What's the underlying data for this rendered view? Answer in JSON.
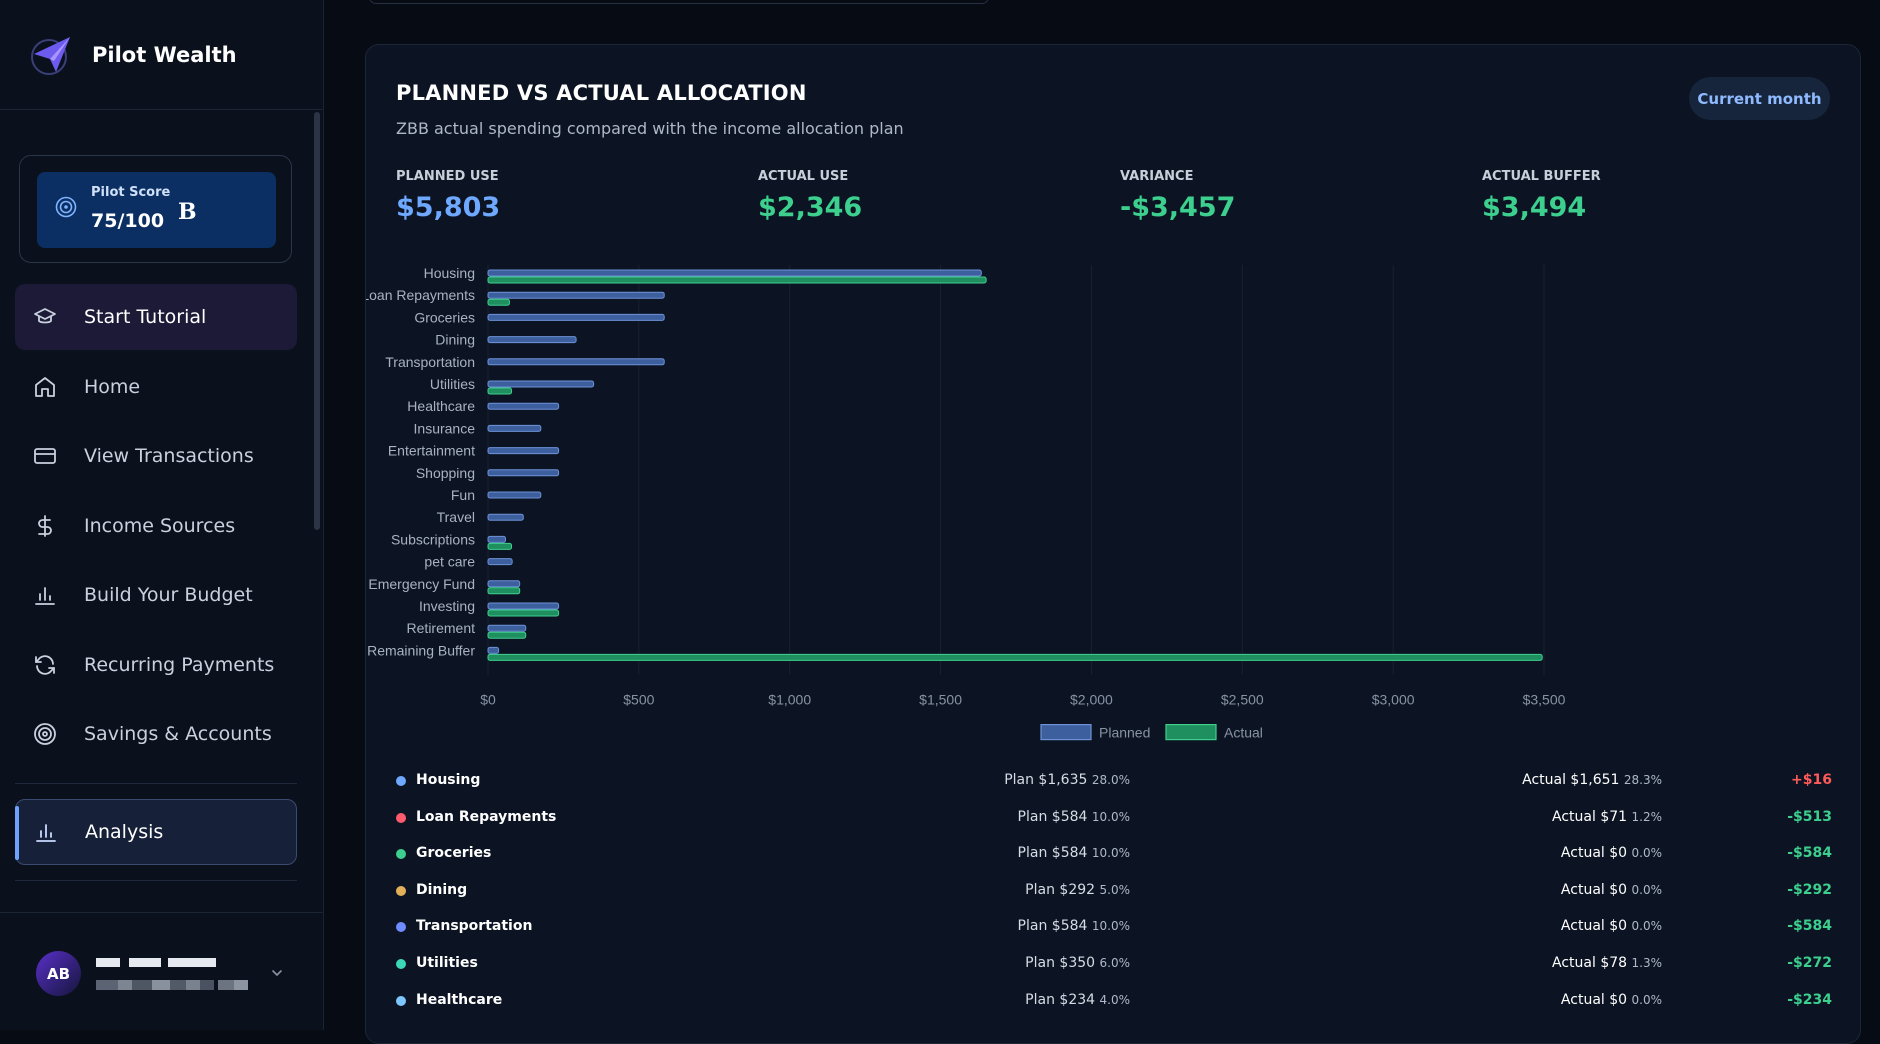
{
  "brand": {
    "name": "Pilot Wealth"
  },
  "score": {
    "label": "Pilot Score",
    "value": "75/100",
    "grade": "B"
  },
  "nav": {
    "tutorial": "Start Tutorial",
    "home": "Home",
    "transactions": "View Transactions",
    "income": "Income Sources",
    "budget": "Build Your Budget",
    "recurring": "Recurring Payments",
    "savings": "Savings & Accounts",
    "analysis": "Analysis"
  },
  "user": {
    "initials": "AB"
  },
  "panel": {
    "title": "PLANNED VS ACTUAL ALLOCATION",
    "subtitle": "ZBB actual spending compared with the income allocation plan",
    "period_button": "Current month"
  },
  "metrics": [
    {
      "label": "PLANNED USE",
      "value": "$5,803",
      "color": "#6ea8ff"
    },
    {
      "label": "ACTUAL USE",
      "value": "$2,346",
      "color": "#3ccf8e"
    },
    {
      "label": "VARIANCE",
      "value": "-$3,457",
      "color": "#3ccf8e"
    },
    {
      "label": "ACTUAL BUFFER",
      "value": "$3,494",
      "color": "#3ccf8e"
    }
  ],
  "chart_data": {
    "type": "bar",
    "orientation": "horizontal",
    "categories": [
      "Housing",
      "Loan Repayments",
      "Groceries",
      "Dining",
      "Transportation",
      "Utilities",
      "Healthcare",
      "Insurance",
      "Entertainment",
      "Shopping",
      "Fun",
      "Travel",
      "Subscriptions",
      "pet care",
      "Emergency Fund",
      "Investing",
      "Retirement",
      "Remaining Buffer"
    ],
    "series": [
      {
        "name": "Planned",
        "color": "#3d5f9e",
        "values": [
          1635,
          584,
          584,
          292,
          584,
          350,
          234,
          175,
          234,
          234,
          175,
          117,
          58,
          80,
          105,
          234,
          125,
          35
        ]
      },
      {
        "name": "Actual",
        "color": "#1f8f5f",
        "values": [
          1651,
          71,
          0,
          0,
          0,
          78,
          0,
          0,
          0,
          0,
          0,
          0,
          78,
          0,
          105,
          234,
          125,
          3494
        ]
      }
    ],
    "xticks": [
      "$0",
      "$500",
      "$1,000",
      "$1,500",
      "$2,000",
      "$2,500",
      "$3,000",
      "$3,500"
    ],
    "xlim": [
      0,
      3500
    ],
    "grid": true,
    "legend": "bottom-center"
  },
  "rows": [
    {
      "name": "Housing",
      "dot": "#6ea8ff",
      "plan": "Plan $1,635",
      "plan_pct": "28.0%",
      "actual": "Actual $1,651",
      "actual_pct": "28.3%",
      "variance": "+$16",
      "var_color": "#ff5a5a"
    },
    {
      "name": "Loan Repayments",
      "dot": "#ff5a6e",
      "plan": "Plan $584",
      "plan_pct": "10.0%",
      "actual": "Actual $71",
      "actual_pct": "1.2%",
      "variance": "-$513",
      "var_color": "#3ccf8e"
    },
    {
      "name": "Groceries",
      "dot": "#3ccf8e",
      "plan": "Plan $584",
      "plan_pct": "10.0%",
      "actual": "Actual $0",
      "actual_pct": "0.0%",
      "variance": "-$584",
      "var_color": "#3ccf8e"
    },
    {
      "name": "Dining",
      "dot": "#e3b05a",
      "plan": "Plan $292",
      "plan_pct": "5.0%",
      "actual": "Actual $0",
      "actual_pct": "0.0%",
      "variance": "-$292",
      "var_color": "#3ccf8e"
    },
    {
      "name": "Transportation",
      "dot": "#6e8cff",
      "plan": "Plan $584",
      "plan_pct": "10.0%",
      "actual": "Actual $0",
      "actual_pct": "0.0%",
      "variance": "-$584",
      "var_color": "#3ccf8e"
    },
    {
      "name": "Utilities",
      "dot": "#3cd6b8",
      "plan": "Plan $350",
      "plan_pct": "6.0%",
      "actual": "Actual $78",
      "actual_pct": "1.3%",
      "variance": "-$272",
      "var_color": "#3ccf8e"
    },
    {
      "name": "Healthcare",
      "dot": "#7ec6ff",
      "plan": "Plan $234",
      "plan_pct": "4.0%",
      "actual": "Actual $0",
      "actual_pct": "0.0%",
      "variance": "-$234",
      "var_color": "#3ccf8e"
    }
  ]
}
